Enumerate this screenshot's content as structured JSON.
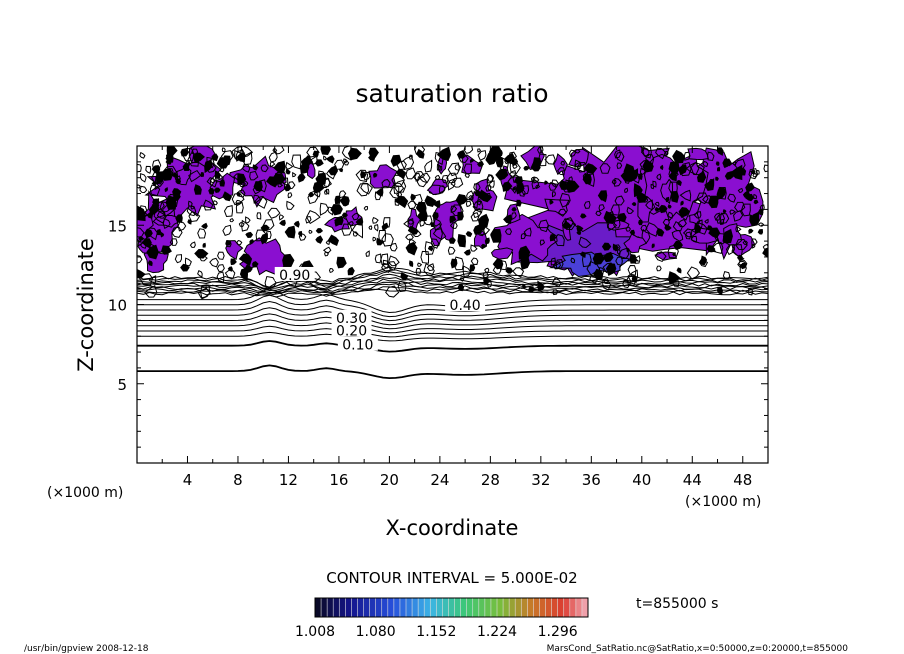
{
  "chart_data": {
    "type": "contour",
    "title": "saturation ratio",
    "xlabel": "X-coordinate",
    "ylabel": "Z-coordinate",
    "x_unit": "(×1000 m)",
    "z_unit": "(×1000 m)",
    "xlim": [
      0,
      50
    ],
    "ylim": [
      0,
      20
    ],
    "x_ticks": [
      "4",
      "8",
      "12",
      "16",
      "20",
      "24",
      "28",
      "32",
      "36",
      "40",
      "44",
      "48"
    ],
    "y_ticks": [
      "5",
      "10",
      "15"
    ],
    "contour_interval_text": "CONTOUR INTERVAL = 5.000E-02",
    "contour_labels": [
      {
        "text": "0.10",
        "x": 17.5,
        "z": 7.4
      },
      {
        "text": "0.20",
        "x": 17.0,
        "z": 8.3
      },
      {
        "text": "0.30",
        "x": 17.0,
        "z": 9.1
      },
      {
        "text": "0.40",
        "x": 26.0,
        "z": 9.9
      },
      {
        "text": "0.90",
        "x": 12.5,
        "z": 11.8
      }
    ],
    "colorbar": {
      "min": 1.008,
      "max": 1.332,
      "tick_labels": [
        "1.008",
        "1.080",
        "1.152",
        "1.224",
        "1.296"
      ]
    },
    "time_label": "t=855000 s"
  },
  "footer": {
    "left": "/usr/bin/gpview   2008-12-18",
    "right": "MarsCond_SatRatio.nc@SatRatio,x=0:50000,z=0:20000,t=855000"
  },
  "colors": {
    "fill": "#8a0fd0",
    "fill_dark": "#6a1cc8",
    "fill_blue": "#4a40d8",
    "line": "#000000"
  }
}
